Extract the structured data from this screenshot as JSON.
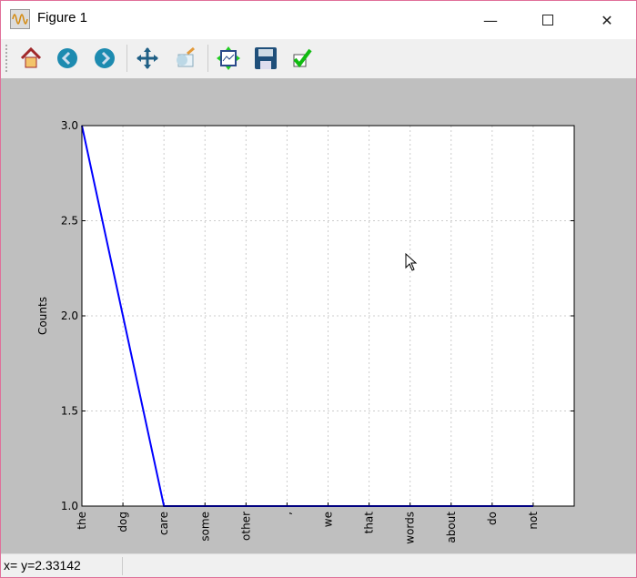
{
  "window": {
    "title": "Figure 1",
    "app_icon": "matplotlib-figure-icon",
    "controls": [
      "minimize",
      "maximize",
      "close"
    ]
  },
  "toolbar": {
    "buttons": [
      {
        "name": "home",
        "icon": "home-icon"
      },
      {
        "name": "back",
        "icon": "arrow-left-icon"
      },
      {
        "name": "forward",
        "icon": "arrow-right-icon"
      },
      {
        "name": "pan",
        "icon": "move-icon"
      },
      {
        "name": "zoom",
        "icon": "zoom-rect-icon"
      },
      {
        "name": "subplots",
        "icon": "configure-subplots-icon"
      },
      {
        "name": "save",
        "icon": "floppy-disk-icon"
      },
      {
        "name": "edit",
        "icon": "checkmark-icon"
      }
    ]
  },
  "status": {
    "text": "x= y=2.33142"
  },
  "chart_data": {
    "type": "line",
    "categories": [
      "the",
      "dog",
      "care",
      "some",
      "other",
      ",",
      "we",
      "that",
      "words",
      "about",
      "do",
      "not"
    ],
    "values": [
      3,
      2,
      1,
      1,
      1,
      1,
      1,
      1,
      1,
      1,
      1,
      1
    ],
    "xlabel": "",
    "ylabel": "Counts",
    "ylim": [
      1.0,
      3.0
    ],
    "xlim": [
      0,
      12
    ],
    "yticks": [
      "1.0",
      "1.5",
      "2.0",
      "2.5",
      "3.0"
    ],
    "grid": true,
    "color": "#0000ff"
  }
}
